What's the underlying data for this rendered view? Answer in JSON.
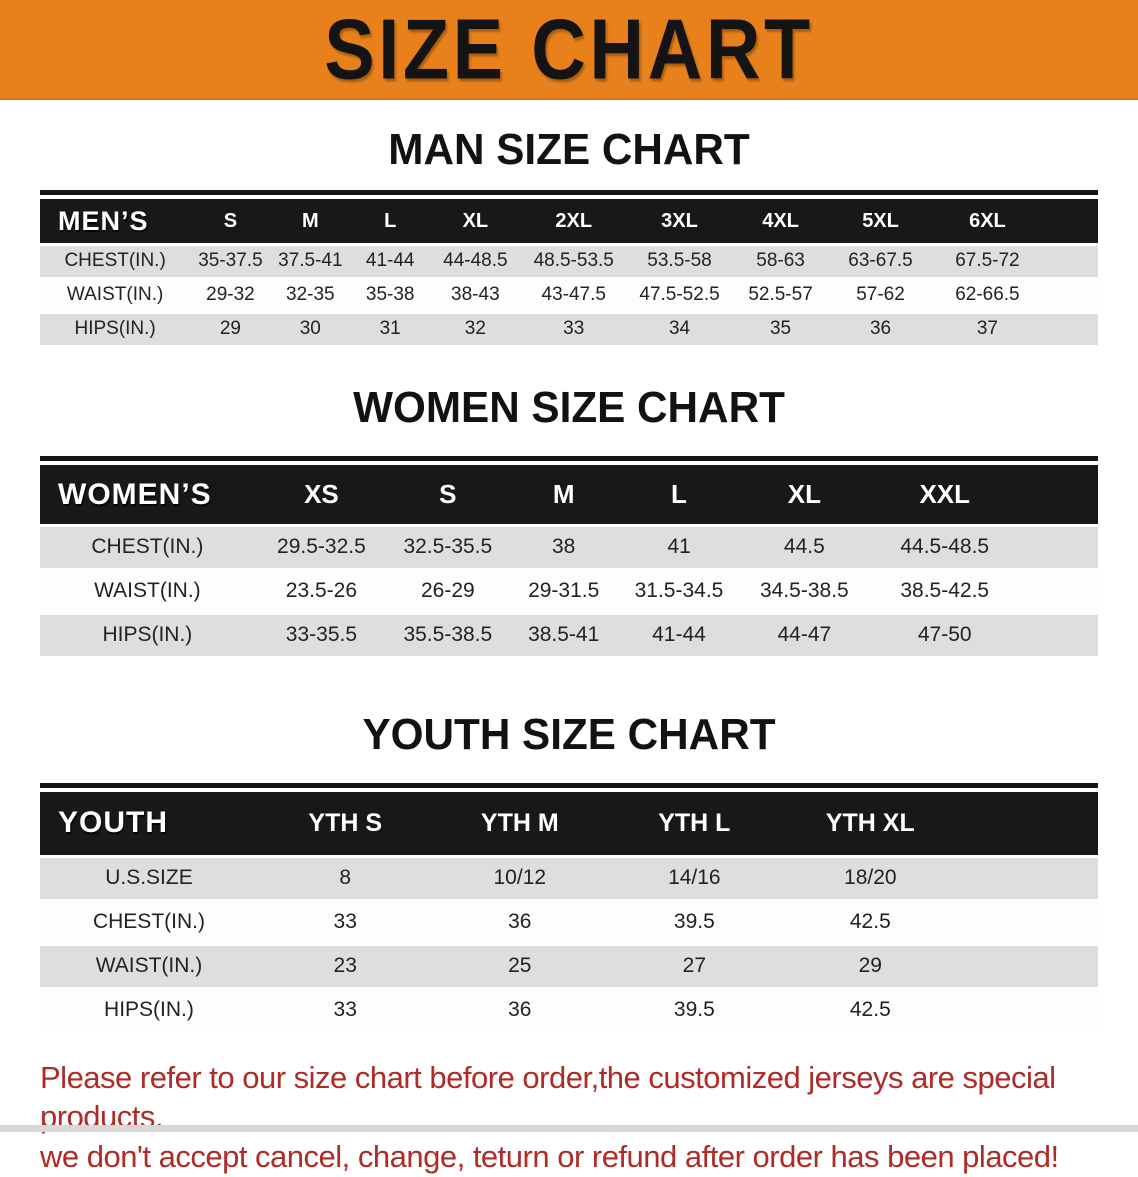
{
  "banner": {
    "title": "SIZE CHART"
  },
  "sections": [
    {
      "id": "mens",
      "heading": "MAN SIZE CHART",
      "corner": "MEN’S",
      "columns": [
        "S",
        "M",
        "L",
        "XL",
        "2XL",
        "3XL",
        "4XL",
        "5XL",
        "6XL"
      ],
      "rows": [
        {
          "label": "CHEST(IN.)",
          "values": [
            "35-37.5",
            "37.5-41",
            "41-44",
            "44-48.5",
            "48.5-53.5",
            "53.5-58",
            "58-63",
            "63-67.5",
            "67.5-72"
          ]
        },
        {
          "label": "WAIST(IN.)",
          "values": [
            "29-32",
            "32-35",
            "35-38",
            "38-43",
            "43-47.5",
            "47.5-52.5",
            "52.5-57",
            "57-62",
            "62-66.5"
          ]
        },
        {
          "label": "HIPS(IN.)",
          "values": [
            "29",
            "30",
            "31",
            "32",
            "33",
            "34",
            "35",
            "36",
            "37"
          ]
        }
      ]
    },
    {
      "id": "womens",
      "heading": "WOMEN SIZE CHART",
      "corner": "WOMEN’S",
      "columns": [
        "XS",
        "S",
        "M",
        "L",
        "XL",
        "XXL"
      ],
      "rows": [
        {
          "label": "CHEST(IN.)",
          "values": [
            "29.5-32.5",
            "32.5-35.5",
            "38",
            "41",
            "44.5",
            "44.5-48.5"
          ]
        },
        {
          "label": "WAIST(IN.)",
          "values": [
            "23.5-26",
            "26-29",
            "29-31.5",
            "31.5-34.5",
            "34.5-38.5",
            "38.5-42.5"
          ]
        },
        {
          "label": "HIPS(IN.)",
          "values": [
            "33-35.5",
            "35.5-38.5",
            "38.5-41",
            "41-44",
            "44-47",
            "47-50"
          ]
        }
      ]
    },
    {
      "id": "youth",
      "heading": "YOUTH SIZE CHART",
      "corner": "YOUTH",
      "columns": [
        "YTH S",
        "YTH M",
        "YTH L",
        "YTH XL"
      ],
      "rows": [
        {
          "label": "U.S.SIZE",
          "values": [
            "8",
            "10/12",
            "14/16",
            "18/20"
          ]
        },
        {
          "label": "CHEST(IN.)",
          "values": [
            "33",
            "36",
            "39.5",
            "42.5"
          ]
        },
        {
          "label": "WAIST(IN.)",
          "values": [
            "23",
            "25",
            "27",
            "29"
          ]
        },
        {
          "label": "HIPS(IN.)",
          "values": [
            "33",
            "36",
            "39.5",
            "42.5"
          ]
        }
      ]
    }
  ],
  "footer": {
    "line1": "Please refer to our size chart before order,the customized jerseys are special products,",
    "line2": "we don't accept cancel, change, teturn or refund after order has been placed!"
  },
  "colors": {
    "banner_bg": "#e8811b",
    "header_bg": "#181818",
    "row_alt": "#dedede",
    "notice_color": "#b02a26"
  }
}
